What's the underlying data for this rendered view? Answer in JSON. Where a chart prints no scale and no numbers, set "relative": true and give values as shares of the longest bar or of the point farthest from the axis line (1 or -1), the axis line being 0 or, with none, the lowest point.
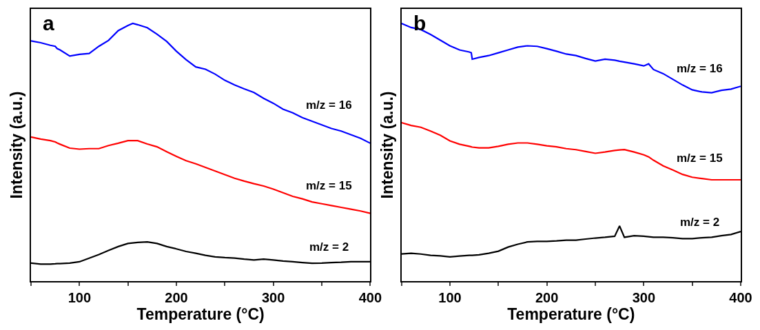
{
  "chart_data": [
    {
      "type": "line",
      "title": "a",
      "xlabel": "Temperature (°C)",
      "ylabel": "Intensity (a.u.)",
      "relative": true,
      "tick_labels": "x",
      "legend": false,
      "marker": "none",
      "line_style": "solid",
      "xlim": [
        50,
        400
      ],
      "xticks": [
        {
          "value": 50,
          "label": null
        },
        100,
        {
          "value": 150,
          "label": null
        },
        200,
        {
          "value": 250,
          "label": null
        },
        300,
        {
          "value": 350,
          "label": null
        },
        400
      ],
      "x": [
        50,
        60,
        70,
        75,
        77,
        80,
        90,
        100,
        110,
        120,
        130,
        140,
        150,
        155,
        160,
        170,
        180,
        190,
        200,
        210,
        220,
        230,
        240,
        250,
        260,
        270,
        280,
        290,
        300,
        310,
        320,
        330,
        340,
        350,
        360,
        370,
        380,
        390,
        400
      ],
      "series": [
        {
          "name": "m/z = 16",
          "color": "#0000ff",
          "values": [
            0.932,
            0.925,
            0.915,
            0.911,
            0.902,
            0.897,
            0.873,
            0.88,
            0.883,
            0.911,
            0.934,
            0.972,
            0.992,
            1.0,
            0.995,
            0.983,
            0.958,
            0.93,
            0.892,
            0.859,
            0.831,
            0.822,
            0.803,
            0.779,
            0.761,
            0.746,
            0.732,
            0.709,
            0.69,
            0.667,
            0.653,
            0.634,
            0.62,
            0.606,
            0.592,
            0.582,
            0.568,
            0.554,
            0.535
          ]
        },
        {
          "name": "m/z = 15",
          "color": "#ff0000",
          "values": [
            0.559,
            0.551,
            0.545,
            0.54,
            0.536,
            0.531,
            0.516,
            0.512,
            0.514,
            0.514,
            0.526,
            0.535,
            0.545,
            0.545,
            0.545,
            0.532,
            0.521,
            0.502,
            0.484,
            0.467,
            0.455,
            0.441,
            0.427,
            0.413,
            0.399,
            0.388,
            0.378,
            0.369,
            0.357,
            0.343,
            0.329,
            0.319,
            0.307,
            0.3,
            0.293,
            0.286,
            0.279,
            0.272,
            0.263
          ]
        },
        {
          "name": "m/z = 2",
          "color": "#000000",
          "values": [
            0.07,
            0.066,
            0.066,
            0.067,
            0.068,
            0.068,
            0.07,
            0.075,
            0.089,
            0.103,
            0.119,
            0.134,
            0.146,
            0.148,
            0.15,
            0.152,
            0.146,
            0.134,
            0.125,
            0.115,
            0.108,
            0.1,
            0.094,
            0.091,
            0.089,
            0.085,
            0.082,
            0.085,
            0.082,
            0.078,
            0.075,
            0.072,
            0.069,
            0.07,
            0.072,
            0.073,
            0.075,
            0.075,
            0.075
          ]
        }
      ]
    },
    {
      "type": "line",
      "title": "b",
      "xlabel": "Temperature (°C)",
      "ylabel": "Intensity (a.u.)",
      "relative": true,
      "tick_labels": "x",
      "legend": false,
      "marker": "none",
      "line_style": "solid",
      "xlim": [
        50,
        400
      ],
      "xticks": [
        {
          "value": 50,
          "label": null
        },
        100,
        {
          "value": 150,
          "label": null
        },
        200,
        {
          "value": 250,
          "label": null
        },
        300,
        {
          "value": 350,
          "label": null
        },
        400
      ],
      "x": [
        50,
        60,
        70,
        80,
        90,
        100,
        110,
        120,
        122,
        123,
        130,
        140,
        150,
        160,
        170,
        180,
        190,
        200,
        210,
        220,
        230,
        240,
        250,
        260,
        270,
        275,
        280,
        290,
        300,
        305,
        310,
        320,
        330,
        340,
        350,
        360,
        370,
        380,
        390,
        400
      ],
      "series": [
        {
          "name": "m/z = 16",
          "color": "#0000ff",
          "values": [
            1.0,
            0.984,
            0.976,
            0.957,
            0.935,
            0.913,
            0.897,
            0.889,
            0.886,
            0.861,
            0.868,
            0.875,
            0.886,
            0.897,
            0.908,
            0.913,
            0.911,
            0.902,
            0.892,
            0.881,
            0.875,
            0.864,
            0.854,
            0.861,
            0.857,
            0.853,
            0.85,
            0.843,
            0.835,
            0.843,
            0.821,
            0.805,
            0.783,
            0.761,
            0.742,
            0.734,
            0.731,
            0.74,
            0.745,
            0.756
          ]
        },
        {
          "name": "m/z = 15",
          "color": "#ff0000",
          "values": [
            0.615,
            0.604,
            0.597,
            0.582,
            0.566,
            0.544,
            0.531,
            0.523,
            0.521,
            0.52,
            0.517,
            0.517,
            0.523,
            0.531,
            0.536,
            0.536,
            0.531,
            0.525,
            0.521,
            0.514,
            0.51,
            0.503,
            0.496,
            0.501,
            0.507,
            0.509,
            0.51,
            0.501,
            0.49,
            0.482,
            0.469,
            0.447,
            0.431,
            0.414,
            0.403,
            0.398,
            0.393,
            0.393,
            0.393,
            0.393
          ]
        },
        {
          "name": "m/z = 2",
          "color": "#000000",
          "values": [
            0.105,
            0.108,
            0.105,
            0.1,
            0.098,
            0.094,
            0.097,
            0.1,
            0.1,
            0.1,
            0.102,
            0.108,
            0.116,
            0.132,
            0.143,
            0.152,
            0.154,
            0.154,
            0.156,
            0.159,
            0.159,
            0.163,
            0.167,
            0.17,
            0.174,
            0.214,
            0.17,
            0.176,
            0.174,
            0.172,
            0.17,
            0.17,
            0.168,
            0.165,
            0.165,
            0.168,
            0.17,
            0.176,
            0.181,
            0.192
          ]
        }
      ]
    }
  ]
}
